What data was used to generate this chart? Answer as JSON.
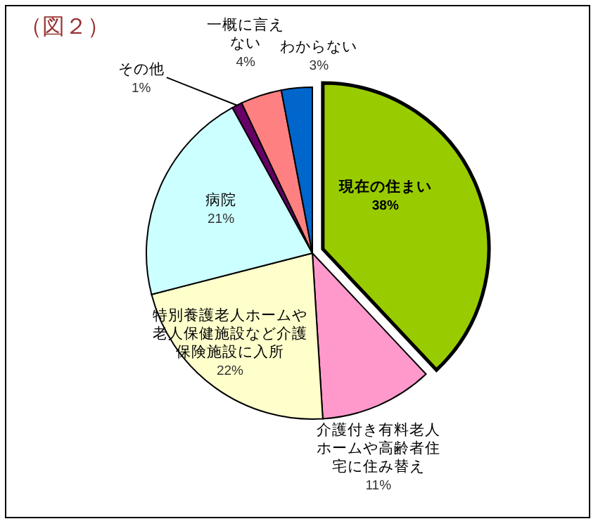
{
  "chart_data": {
    "type": "pie",
    "title": "（図２）",
    "categories": [
      "現在の住まい",
      "介護付き有料老人ホームや高齢者住宅に住み替え",
      "特別養護老人ホームや老人保健施設など介護保険施設に入所",
      "病院",
      "その他",
      "一概に言えない",
      "わからない"
    ],
    "values": [
      38,
      11,
      22,
      21,
      1,
      4,
      3
    ],
    "value_labels": [
      "38%",
      "11%",
      "22%",
      "21%",
      "1%",
      "4%",
      "3%"
    ],
    "colors": [
      "#99cc00",
      "#ff99cc",
      "#ffffcc",
      "#ccffff",
      "#660066",
      "#ff8080",
      "#0066cc"
    ]
  }
}
